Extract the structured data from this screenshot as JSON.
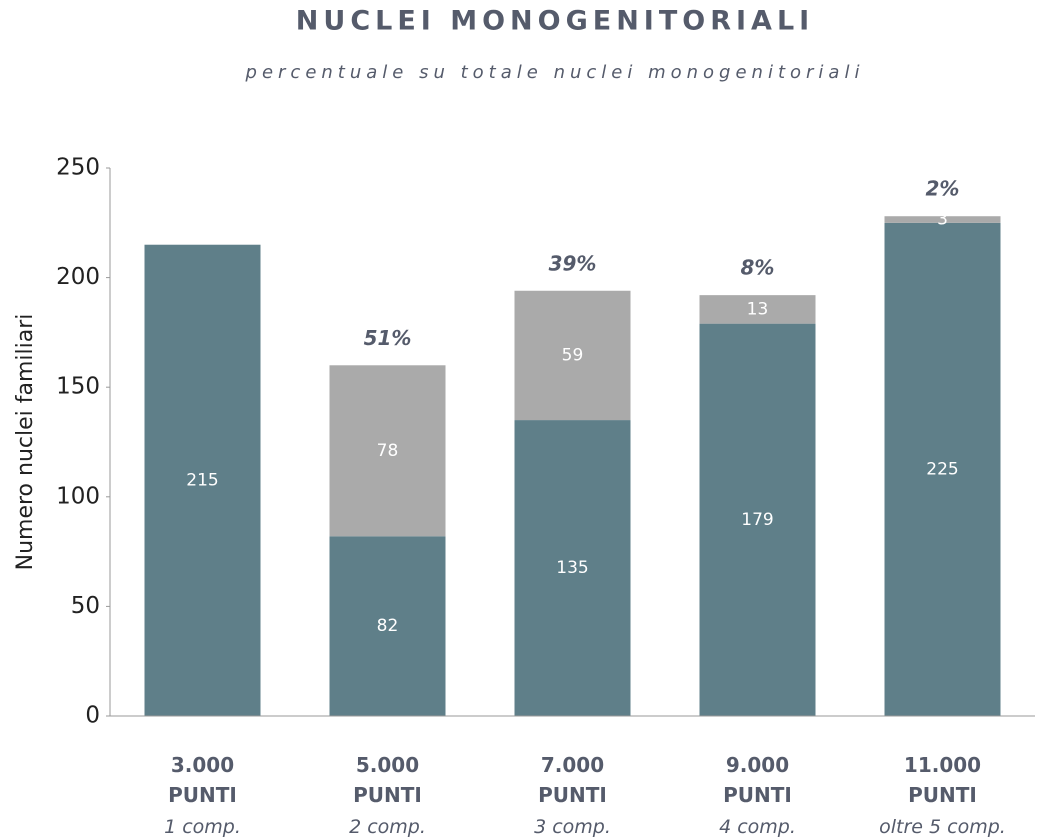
{
  "chart_data": {
    "type": "stacked_bar",
    "title": "NUCLEI MONOGENITORIALI",
    "subtitle": "percentuale su totale nuclei monogenitoriali",
    "y_label": "Numero nuclei familiari",
    "categories": [
      "3.000 PUNTI",
      "5.000 PUNTI",
      "7.000 PUNTI",
      "9.000 PUNTI",
      "11.000 PUNTI"
    ],
    "category_notes": [
      "1 comp.",
      "2 comp.",
      "3 comp.",
      "4 comp.",
      "oltre 5 comp."
    ],
    "series": [
      {
        "color": "#5f7f89",
        "values": [
          215,
          82,
          135,
          179,
          225
        ]
      },
      {
        "color": "#aaaaaa",
        "values": [
          null,
          78,
          59,
          13,
          3
        ]
      }
    ],
    "percent_labels": [
      null,
      "51%",
      "39%",
      "8%",
      "2%"
    ],
    "ylim": [
      0,
      250
    ],
    "yticks": [
      0,
      50,
      100,
      150,
      200,
      250
    ]
  }
}
